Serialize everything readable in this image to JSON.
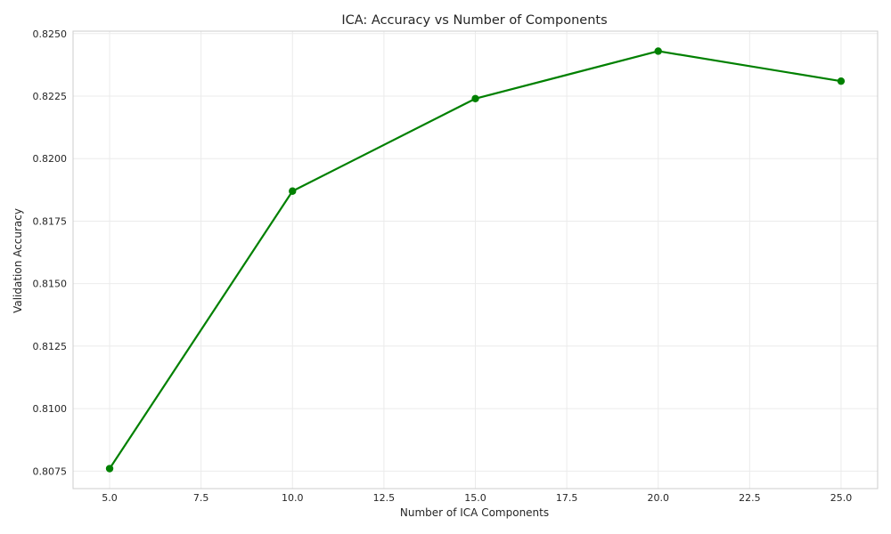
{
  "chart_data": {
    "type": "line",
    "title": "ICA: Accuracy vs Number of Components",
    "xlabel": "Number of ICA Components",
    "ylabel": "Validation Accuracy",
    "xlim": [
      4.0,
      26.0
    ],
    "ylim": [
      0.8068,
      0.8251
    ],
    "x_ticks": [
      5.0,
      7.5,
      10.0,
      12.5,
      15.0,
      17.5,
      20.0,
      22.5,
      25.0
    ],
    "x_tick_labels": [
      "5.0",
      "7.5",
      "10.0",
      "12.5",
      "15.0",
      "17.5",
      "20.0",
      "22.5",
      "25.0"
    ],
    "y_ticks": [
      0.8075,
      0.81,
      0.8125,
      0.815,
      0.8175,
      0.82,
      0.8225,
      0.825
    ],
    "y_tick_labels": [
      "0.8075",
      "0.8100",
      "0.8125",
      "0.8150",
      "0.8175",
      "0.8200",
      "0.8225",
      "0.8250"
    ],
    "grid": true,
    "series": [
      {
        "color": "#008000",
        "marker": "circle",
        "x": [
          5,
          10,
          15,
          20,
          25
        ],
        "y": [
          0.8076,
          0.8187,
          0.8224,
          0.8243,
          0.8231
        ]
      }
    ]
  }
}
